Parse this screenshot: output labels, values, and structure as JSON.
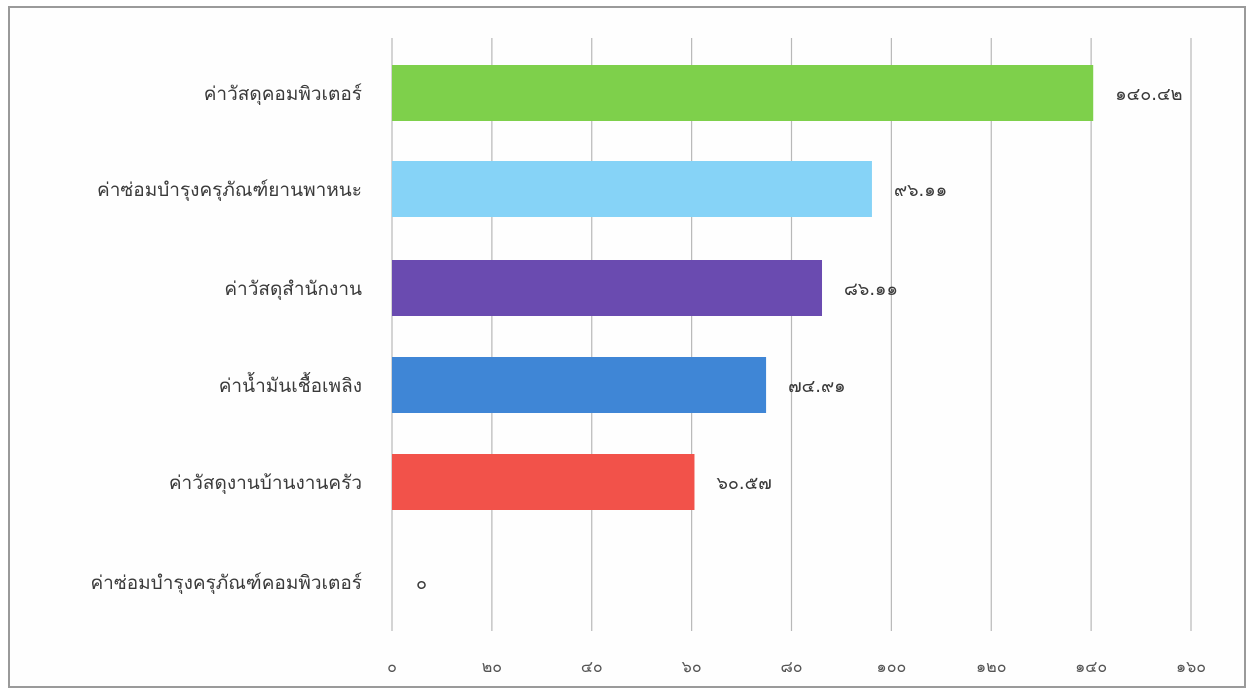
{
  "chart_data": {
    "type": "bar",
    "orientation": "horizontal",
    "title": "",
    "xlabel": "",
    "ylabel": "",
    "categories": [
      "ค่าวัสดุคอมพิวเตอร์",
      "ค่าซ่อมบำรุงครุภัณฑ์ยานพาหนะ",
      "ค่าวัสดุสำนักงาน",
      "ค่าน้ำมันเชื้อเพลิง",
      "ค่าวัสดุงานบ้านงานครัว",
      "ค่าซ่อมบำรุงครุภัณฑ์คอมพิวเตอร์"
    ],
    "values": [
      140.42,
      96.11,
      86.11,
      74.91,
      60.57,
      0
    ],
    "value_labels": [
      "๑๔๐.๔๒",
      "๙๖.๑๑",
      "๘๖.๑๑",
      "๗๔.๙๑",
      "๖๐.๕๗",
      "๐"
    ],
    "bar_colors": [
      "#7ed04b",
      "#86d3f7",
      "#6a4bb0",
      "#3f86d6",
      "#f2524a",
      "#ffffff"
    ],
    "xlim": [
      0,
      160
    ],
    "ticks": [
      0,
      20,
      40,
      60,
      80,
      100,
      120,
      140,
      160
    ],
    "tick_labels": [
      "๐",
      "๒๐",
      "๔๐",
      "๖๐",
      "๘๐",
      "๑๐๐",
      "๑๒๐",
      "๑๔๐",
      "๑๖๐"
    ],
    "grid": true,
    "legend": "none"
  }
}
